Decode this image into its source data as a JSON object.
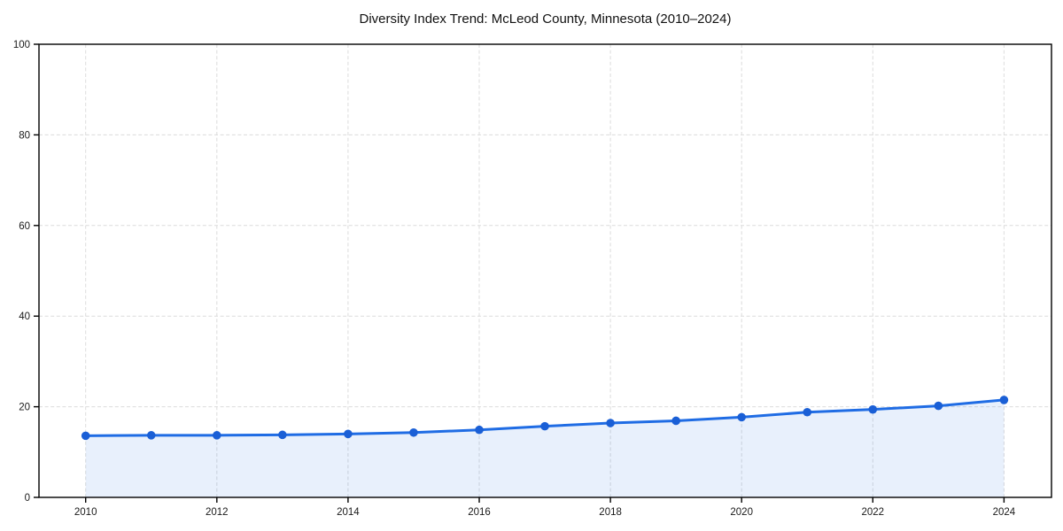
{
  "chart_data": {
    "type": "line",
    "title": "Diversity Index Trend: McLeod County, Minnesota (2010–2024)",
    "series_name": "Diversity Index",
    "x": [
      2010,
      2011,
      2012,
      2013,
      2014,
      2015,
      2016,
      2017,
      2018,
      2019,
      2020,
      2021,
      2022,
      2023,
      2024
    ],
    "values": [
      13.6,
      13.7,
      13.7,
      13.8,
      14.0,
      14.3,
      14.9,
      15.7,
      16.4,
      16.9,
      17.7,
      18.8,
      19.4,
      20.2,
      21.5
    ],
    "xlabel": "",
    "ylabel": "",
    "ylim": [
      0,
      100
    ],
    "yticks": [
      0,
      20,
      40,
      60,
      80,
      100
    ],
    "xticks": [
      2010,
      2012,
      2014,
      2016,
      2018,
      2020,
      2022,
      2024
    ],
    "grid": "dashed, both axes, at labeled ticks",
    "legend": "none",
    "marker": "circle",
    "area_fill": true,
    "colors": {
      "line": "#1f6ce4",
      "marker": "#1a5fd6",
      "fill_rgba": "rgba(31,108,228,0.10)",
      "grid": "#dcdcdc",
      "axis": "#000000",
      "tick_text": "#1a1a1a",
      "background": "#ffffff"
    }
  }
}
